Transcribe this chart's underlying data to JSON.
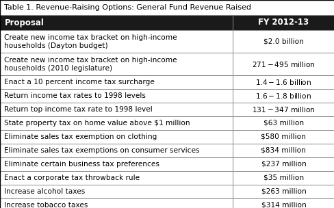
{
  "title": "Table 1. Revenue-Raising Options: General Fund Revenue Raised",
  "col_headers": [
    "Proposal",
    "FY 2012-13"
  ],
  "rows": [
    [
      "Create new income tax bracket on high-income\nhouseholds (Dayton budget)",
      "$2.0 billion"
    ],
    [
      "Create new income tax bracket on high-income\nhouseholds (2010 legislature)",
      "$271 - $495 million"
    ],
    [
      "Enact a 10 percent income tax surcharge",
      "$1.4 - $1.6 billion"
    ],
    [
      "Return income tax rates to 1998 levels",
      "$1.6 - $1.8 billion"
    ],
    [
      "Return top income tax rate to 1998 level",
      "$131 - $347 million"
    ],
    [
      "State property tax on home value above $1 million",
      "$63 million"
    ],
    [
      "Eliminate sales tax exemption on clothing",
      "$580 million"
    ],
    [
      "Eliminate sales tax exemptions on consumer services",
      "$834 million"
    ],
    [
      "Eliminate certain business tax preferences",
      "$237 million"
    ],
    [
      "Enact a corporate tax throwback rule",
      "$35 million"
    ],
    [
      "Increase alcohol taxes",
      "$263 million"
    ],
    [
      "Increase tobacco taxes",
      "$314 million"
    ]
  ],
  "header_bg": "#1a1a1a",
  "header_fg": "#ffffff",
  "row_bg": "#ffffff",
  "border_color": "#888888",
  "title_fontsize": 8.0,
  "header_fontsize": 8.5,
  "cell_fontsize": 7.6,
  "col_split": 0.695,
  "figsize": [
    4.89,
    3.04
  ],
  "dpi": 100
}
